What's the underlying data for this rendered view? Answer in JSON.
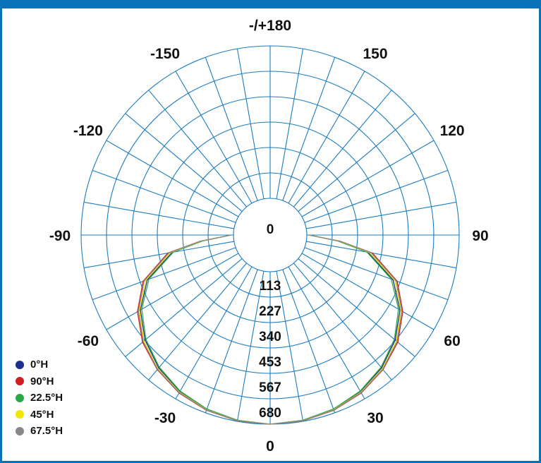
{
  "chart_data": {
    "type": "polar-line",
    "title": "",
    "angle_labels": [
      {
        "angle": 180,
        "label": "-/+180"
      },
      {
        "angle": 150,
        "label": "150"
      },
      {
        "angle": -150,
        "label": "-150"
      },
      {
        "angle": 120,
        "label": "120"
      },
      {
        "angle": -120,
        "label": "-120"
      },
      {
        "angle": 90,
        "label": "90"
      },
      {
        "angle": -90,
        "label": "-90"
      },
      {
        "angle": 60,
        "label": "60"
      },
      {
        "angle": -60,
        "label": "-60"
      },
      {
        "angle": 30,
        "label": "30"
      },
      {
        "angle": -30,
        "label": "-30"
      },
      {
        "angle": 0,
        "label": "0"
      }
    ],
    "radial_labels": [
      {
        "value": 0,
        "label": "0"
      },
      {
        "value": 113,
        "label": "113"
      },
      {
        "value": 227,
        "label": "227"
      },
      {
        "value": 340,
        "label": "340"
      },
      {
        "value": 453,
        "label": "453"
      },
      {
        "value": 567,
        "label": "567"
      },
      {
        "value": 680,
        "label": "680"
      }
    ],
    "rmax": 680,
    "grid": true,
    "grid_color": "#1a7cc1",
    "angle_step_deg": 10,
    "legend_position": "bottom-left",
    "series": [
      {
        "name": "0°H",
        "color": "#1b2f8f",
        "angles": [
          0,
          10,
          20,
          30,
          40,
          50,
          60,
          70,
          80,
          85,
          90
        ],
        "values": [
          680,
          676,
          664,
          642,
          610,
          565,
          505,
          420,
          280,
          140,
          10
        ]
      },
      {
        "name": "90°H",
        "color": "#d21f26",
        "angles": [
          0,
          10,
          20,
          30,
          40,
          50,
          60,
          70,
          80,
          85,
          90
        ],
        "values": [
          680,
          678,
          668,
          650,
          620,
          580,
          520,
          440,
          300,
          150,
          10
        ]
      },
      {
        "name": "22.5°H",
        "color": "#2aa84a",
        "angles": [
          0,
          10,
          20,
          30,
          40,
          50,
          60,
          70,
          80,
          85,
          90
        ],
        "values": [
          680,
          675,
          662,
          640,
          606,
          560,
          498,
          412,
          275,
          138,
          10
        ]
      },
      {
        "name": "45°H",
        "color": "#f2e500",
        "angles": [
          0,
          10,
          20,
          30,
          40,
          50,
          60,
          70,
          80,
          85,
          90
        ],
        "values": [
          680,
          677,
          666,
          646,
          615,
          572,
          510,
          428,
          288,
          145,
          10
        ]
      },
      {
        "name": "67.5°H",
        "color": "#888888",
        "angles": [
          0,
          10,
          20,
          30,
          40,
          50,
          60,
          70,
          80,
          85,
          90
        ],
        "values": [
          680,
          677,
          667,
          648,
          618,
          576,
          515,
          435,
          295,
          148,
          10
        ]
      }
    ]
  }
}
